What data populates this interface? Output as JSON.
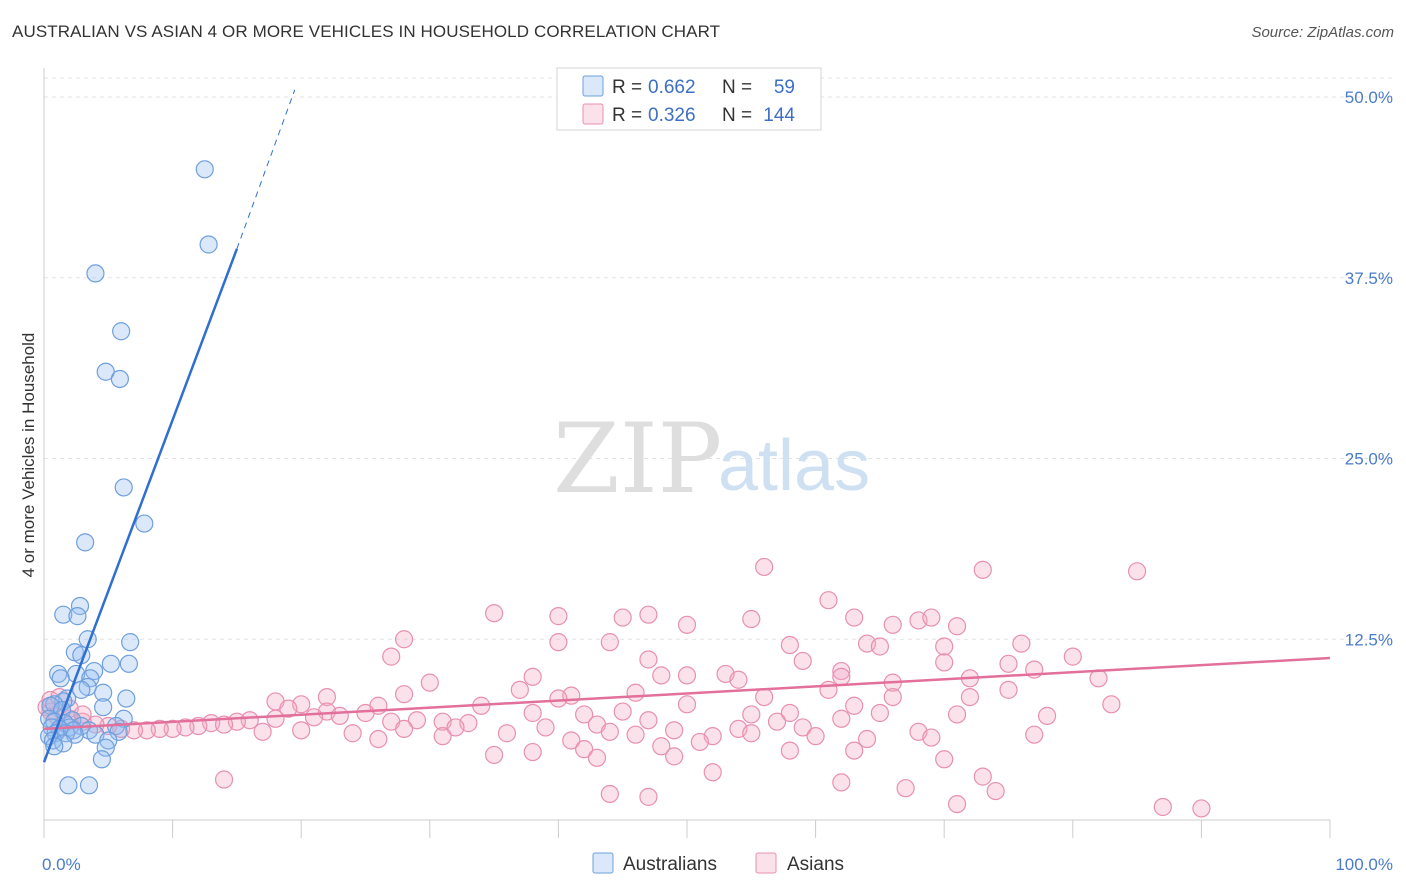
{
  "title": "AUSTRALIAN VS ASIAN 4 OR MORE VEHICLES IN HOUSEHOLD CORRELATION CHART",
  "source": "Source: ZipAtlas.com",
  "watermark": {
    "part1": "ZIP",
    "part2": "atlas"
  },
  "colors": {
    "australians_fill": "rgba(148,190,240,0.35)",
    "australians_stroke": "#6f9fdc",
    "australians_line": "#2f6fd0",
    "asians_fill": "rgba(244,170,196,0.35)",
    "asians_stroke": "#e890b0",
    "asians_line": "#e2709a",
    "grid": "#e3e3e3",
    "tick_text": "#4a7cc9"
  },
  "legend": {
    "rows": [
      {
        "r_label": "R =",
        "r_value": "0.662",
        "n_label": "N =",
        "n_value": "59"
      },
      {
        "r_label": "R =",
        "r_value": "0.326",
        "n_label": "N =",
        "n_value": "144"
      }
    ]
  },
  "chart_data": {
    "type": "scatter",
    "xlabel": "",
    "ylabel": "4 or more Vehicles in Household",
    "xlim": [
      0,
      100
    ],
    "ylim": [
      0,
      50
    ],
    "x_tick_labels": [
      "0.0%",
      "100.0%"
    ],
    "y_ticks": [
      12.5,
      25.0,
      37.5,
      50.0
    ],
    "y_tick_labels": [
      "12.5%",
      "25.0%",
      "37.5%",
      "50.0%"
    ],
    "grid": true,
    "legend_position": "top-center",
    "series": [
      {
        "name": "Australians",
        "r": 0.662,
        "n": 59,
        "trend": {
          "x": [
            0,
            15
          ],
          "y": [
            4.0,
            39.5
          ],
          "dashed_to": [
            19.5,
            50.5
          ]
        },
        "points": [
          [
            12.5,
            45.0
          ],
          [
            12.8,
            39.8
          ],
          [
            4.0,
            37.8
          ],
          [
            6.0,
            33.8
          ],
          [
            4.8,
            31.0
          ],
          [
            5.9,
            30.5
          ],
          [
            6.2,
            23.0
          ],
          [
            7.8,
            20.5
          ],
          [
            3.2,
            19.2
          ],
          [
            2.8,
            14.8
          ],
          [
            1.5,
            14.2
          ],
          [
            2.6,
            14.1
          ],
          [
            3.4,
            12.5
          ],
          [
            6.7,
            12.3
          ],
          [
            2.4,
            11.6
          ],
          [
            2.9,
            11.4
          ],
          [
            5.2,
            10.8
          ],
          [
            6.6,
            10.8
          ],
          [
            3.9,
            10.3
          ],
          [
            2.5,
            10.1
          ],
          [
            1.1,
            10.1
          ],
          [
            1.3,
            9.8
          ],
          [
            3.6,
            9.8
          ],
          [
            3.4,
            9.2
          ],
          [
            2.9,
            9.0
          ],
          [
            4.6,
            8.8
          ],
          [
            6.4,
            8.4
          ],
          [
            1.8,
            8.4
          ],
          [
            1.5,
            8.2
          ],
          [
            0.8,
            8.0
          ],
          [
            0.5,
            7.9
          ],
          [
            4.6,
            7.8
          ],
          [
            1.4,
            7.6
          ],
          [
            0.4,
            7.0
          ],
          [
            6.2,
            7.0
          ],
          [
            2.2,
            6.9
          ],
          [
            0.8,
            6.8
          ],
          [
            1.6,
            6.7
          ],
          [
            2.9,
            6.5
          ],
          [
            5.6,
            6.5
          ],
          [
            0.6,
            6.4
          ],
          [
            2.0,
            6.4
          ],
          [
            1.2,
            6.3
          ],
          [
            2.3,
            6.2
          ],
          [
            3.5,
            6.2
          ],
          [
            5.8,
            6.1
          ],
          [
            1.7,
            6.0
          ],
          [
            0.9,
            6.0
          ],
          [
            2.4,
            5.9
          ],
          [
            4.0,
            5.9
          ],
          [
            0.4,
            5.8
          ],
          [
            0.7,
            5.5
          ],
          [
            5.0,
            5.5
          ],
          [
            1.5,
            5.3
          ],
          [
            0.8,
            5.1
          ],
          [
            4.8,
            5.0
          ],
          [
            4.5,
            4.2
          ],
          [
            1.9,
            2.4
          ],
          [
            3.5,
            2.4
          ]
        ]
      },
      {
        "name": "Asians",
        "r": 0.326,
        "n": 144,
        "trend": {
          "x": [
            0,
            100
          ],
          "y": [
            6.3,
            11.2
          ]
        },
        "points": [
          [
            56,
            17.5
          ],
          [
            73,
            17.3
          ],
          [
            85,
            17.2
          ],
          [
            61,
            15.2
          ],
          [
            35,
            14.3
          ],
          [
            47,
            14.2
          ],
          [
            45,
            14.0
          ],
          [
            63,
            14.0
          ],
          [
            55,
            13.9
          ],
          [
            68,
            13.8
          ],
          [
            69,
            14.0
          ],
          [
            66,
            13.5
          ],
          [
            50,
            13.5
          ],
          [
            71,
            13.4
          ],
          [
            40,
            14.1
          ],
          [
            28,
            12.5
          ],
          [
            58,
            12.1
          ],
          [
            64,
            12.2
          ],
          [
            65,
            12.0
          ],
          [
            76,
            12.2
          ],
          [
            40,
            12.3
          ],
          [
            44,
            12.3
          ],
          [
            70,
            12.0
          ],
          [
            27,
            11.3
          ],
          [
            59,
            11.0
          ],
          [
            70,
            10.9
          ],
          [
            80,
            11.3
          ],
          [
            47,
            11.1
          ],
          [
            62,
            10.3
          ],
          [
            77,
            10.4
          ],
          [
            82,
            9.8
          ],
          [
            48,
            10.0
          ],
          [
            53,
            10.1
          ],
          [
            50,
            10.0
          ],
          [
            62,
            9.9
          ],
          [
            75,
            10.8
          ],
          [
            30,
            9.5
          ],
          [
            38,
            9.9
          ],
          [
            54,
            9.7
          ],
          [
            66,
            9.5
          ],
          [
            72,
            9.8
          ],
          [
            28,
            8.7
          ],
          [
            37,
            9.0
          ],
          [
            41,
            8.6
          ],
          [
            46,
            8.8
          ],
          [
            56,
            8.5
          ],
          [
            61,
            9.0
          ],
          [
            66,
            8.5
          ],
          [
            72,
            8.5
          ],
          [
            50,
            8.0
          ],
          [
            63,
            7.9
          ],
          [
            83,
            8.0
          ],
          [
            75,
            9.0
          ],
          [
            40,
            8.4
          ],
          [
            22,
            8.5
          ],
          [
            18,
            8.2
          ],
          [
            20,
            8.0
          ],
          [
            34,
            7.9
          ],
          [
            26,
            7.9
          ],
          [
            19,
            7.7
          ],
          [
            22,
            7.5
          ],
          [
            38,
            7.4
          ],
          [
            45,
            7.5
          ],
          [
            42,
            7.3
          ],
          [
            58,
            7.4
          ],
          [
            65,
            7.4
          ],
          [
            71,
            7.3
          ],
          [
            78,
            7.2
          ],
          [
            62,
            7.0
          ],
          [
            55,
            7.3
          ],
          [
            57,
            6.8
          ],
          [
            47,
            6.9
          ],
          [
            43,
            6.6
          ],
          [
            33,
            6.7
          ],
          [
            29,
            6.9
          ],
          [
            31,
            6.8
          ],
          [
            27,
            6.8
          ],
          [
            25,
            7.4
          ],
          [
            23,
            7.2
          ],
          [
            21,
            7.1
          ],
          [
            18,
            7.0
          ],
          [
            16,
            6.9
          ],
          [
            15,
            6.8
          ],
          [
            13,
            6.7
          ],
          [
            12,
            6.5
          ],
          [
            11,
            6.4
          ],
          [
            10,
            6.3
          ],
          [
            9,
            6.3
          ],
          [
            8,
            6.2
          ],
          [
            7,
            6.2
          ],
          [
            6,
            6.3
          ],
          [
            5,
            6.5
          ],
          [
            4,
            6.6
          ],
          [
            3,
            6.8
          ],
          [
            2,
            7.0
          ],
          [
            1,
            7.2
          ],
          [
            0.5,
            7.5
          ],
          [
            0.2,
            7.8
          ],
          [
            0.5,
            8.3
          ],
          [
            1.2,
            8.5
          ],
          [
            2.0,
            7.7
          ],
          [
            3.0,
            7.3
          ],
          [
            14,
            6.6
          ],
          [
            17,
            6.1
          ],
          [
            20,
            6.2
          ],
          [
            24,
            6.0
          ],
          [
            28,
            6.3
          ],
          [
            32,
            6.4
          ],
          [
            36,
            6.0
          ],
          [
            39,
            6.4
          ],
          [
            44,
            6.1
          ],
          [
            49,
            6.2
          ],
          [
            52,
            5.8
          ],
          [
            54,
            6.3
          ],
          [
            59,
            6.4
          ],
          [
            68,
            6.1
          ],
          [
            26,
            5.6
          ],
          [
            31,
            5.8
          ],
          [
            41,
            5.5
          ],
          [
            46,
            5.9
          ],
          [
            51,
            5.4
          ],
          [
            55,
            6.0
          ],
          [
            60,
            5.8
          ],
          [
            64,
            5.6
          ],
          [
            69,
            5.7
          ],
          [
            77,
            5.9
          ],
          [
            48,
            5.1
          ],
          [
            42,
            4.9
          ],
          [
            38,
            4.7
          ],
          [
            35,
            4.5
          ],
          [
            43,
            4.3
          ],
          [
            49,
            4.4
          ],
          [
            52,
            3.3
          ],
          [
            58,
            4.8
          ],
          [
            63,
            4.8
          ],
          [
            70,
            4.2
          ],
          [
            73,
            3.0
          ],
          [
            74,
            2.0
          ],
          [
            71,
            1.1
          ],
          [
            87,
            0.9
          ],
          [
            90,
            0.8
          ],
          [
            14,
            2.8
          ],
          [
            44,
            1.8
          ],
          [
            47,
            1.6
          ],
          [
            62,
            2.6
          ],
          [
            67,
            2.2
          ]
        ]
      }
    ]
  },
  "bottom_legend": {
    "items": [
      "Australians",
      "Asians"
    ]
  }
}
